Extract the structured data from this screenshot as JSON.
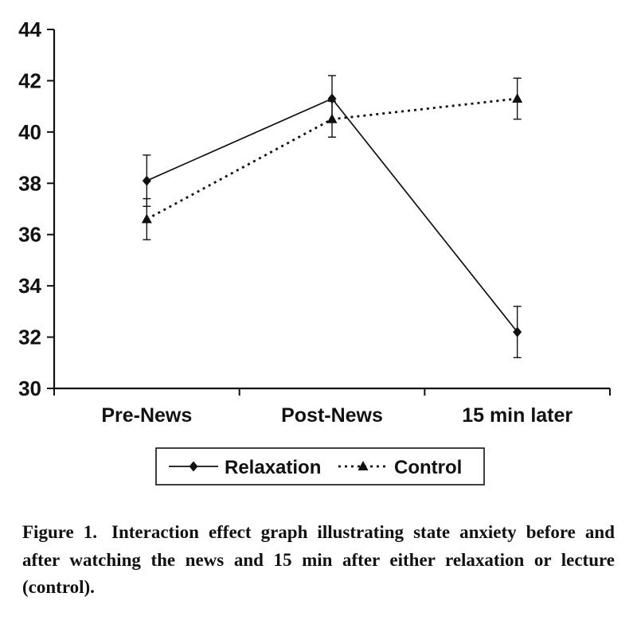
{
  "chart_data": {
    "type": "line",
    "title": "",
    "xlabel": "",
    "ylabel": "",
    "categories": [
      "Pre-News",
      "Post-News",
      "15 min later"
    ],
    "series": [
      {
        "name": "Relaxation",
        "marker": "diamond",
        "line": "solid",
        "values": [
          38.1,
          41.3,
          32.2
        ],
        "errors": [
          1.0,
          0.9,
          1.0
        ]
      },
      {
        "name": "Control",
        "marker": "triangle",
        "line": "dashed",
        "values": [
          36.6,
          40.5,
          41.3
        ],
        "errors": [
          0.8,
          0.7,
          0.8
        ]
      }
    ],
    "ylim": [
      30,
      44
    ],
    "ytick_step": 2,
    "grid": false,
    "legend_position": "bottom",
    "error_bars": true
  },
  "caption": {
    "label": "Figure 1.",
    "text": "Interaction effect graph illustrating state anxiety before and after watching the news and 15 min after either relaxation or lecture (control)."
  },
  "colors": {
    "ink": "#111111",
    "background": "#ffffff"
  }
}
